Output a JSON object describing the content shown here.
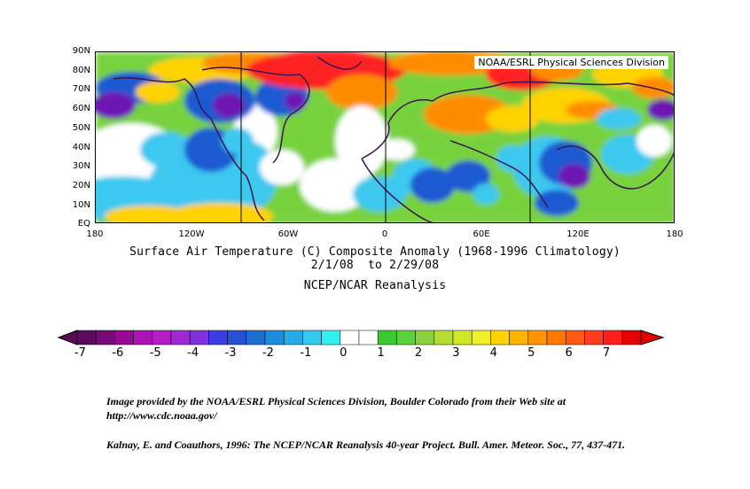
{
  "map": {
    "credit": "NOAA/ESRL Physical Sciences Division",
    "lat_labels": [
      "90N",
      "80N",
      "70N",
      "60N",
      "50N",
      "40N",
      "30N",
      "20N",
      "10N",
      "EQ"
    ],
    "lon_labels": [
      "180",
      "120W",
      "60W",
      "0",
      "60E",
      "120E",
      "180"
    ],
    "colors": {
      "warm_strong": "#ff2020",
      "warm": "#ff8c00",
      "warm_mild": "#ffd200",
      "neutral_warm": "#78d23c",
      "neutral": "#ffffff",
      "cool_mild": "#3cc8f0",
      "cool": "#1e5ad2",
      "cool_strong": "#6e14b4",
      "coastline": "#3c1450"
    }
  },
  "title": {
    "line1": "Surface Air Temperature (C) Composite Anomaly (1968-1996 Climatology)",
    "line2": "2/1/08  to 2/29/08",
    "line3": "NCEP/NCAR Reanalysis"
  },
  "colorbar": {
    "colors": [
      "#5a0a5a",
      "#780a78",
      "#960a96",
      "#aa14b4",
      "#b41ec8",
      "#a028d2",
      "#8232dc",
      "#3c3ce6",
      "#2850d2",
      "#1e6ed2",
      "#1e8cdc",
      "#28aae6",
      "#32c8f0",
      "#32f0f0",
      "#ffffff",
      "#ffffff",
      "#3cc832",
      "#5ad23c",
      "#8cd23c",
      "#b4dc32",
      "#d2e628",
      "#f0f028",
      "#ffd200",
      "#ffb400",
      "#ff9600",
      "#ff7800",
      "#ff5a14",
      "#ff3c1e",
      "#ff1e1e",
      "#e60000"
    ],
    "labels": [
      "-7",
      "-6",
      "-5",
      "-4",
      "-3",
      "-2",
      "-1",
      "0",
      "1",
      "2",
      "3",
      "4",
      "5",
      "6",
      "7"
    ]
  },
  "footer": {
    "line1": "Image provided by the NOAA/ESRL Physical Sciences Division, Boulder Colorado from their Web site at",
    "line2": "http://www.cdc.noaa.gov/",
    "citation": "Kalnay, E. and Coauthors, 1996: The NCEP/NCAR Reanalysis 40-year Project. Bull. Amer. Meteor. Soc., 77, 437-471."
  }
}
